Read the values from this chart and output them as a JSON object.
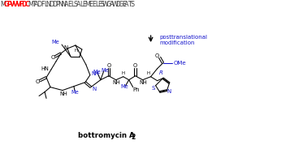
{
  "bg_color": "#ffffff",
  "blue": "#1515CC",
  "black": "#000000",
  "red": "#FF0000",
  "dark": "#404040",
  "seq_M": "M",
  "seq_red": "GPVVVFDC",
  "seq_rest": "MTADFLNDDPNNAELSALEMEELESWGAWDGEATS",
  "arrow_text_line1": "posttranslational",
  "arrow_text_line2": "modification",
  "caption": "bottromycin A",
  "caption_sub": "2"
}
